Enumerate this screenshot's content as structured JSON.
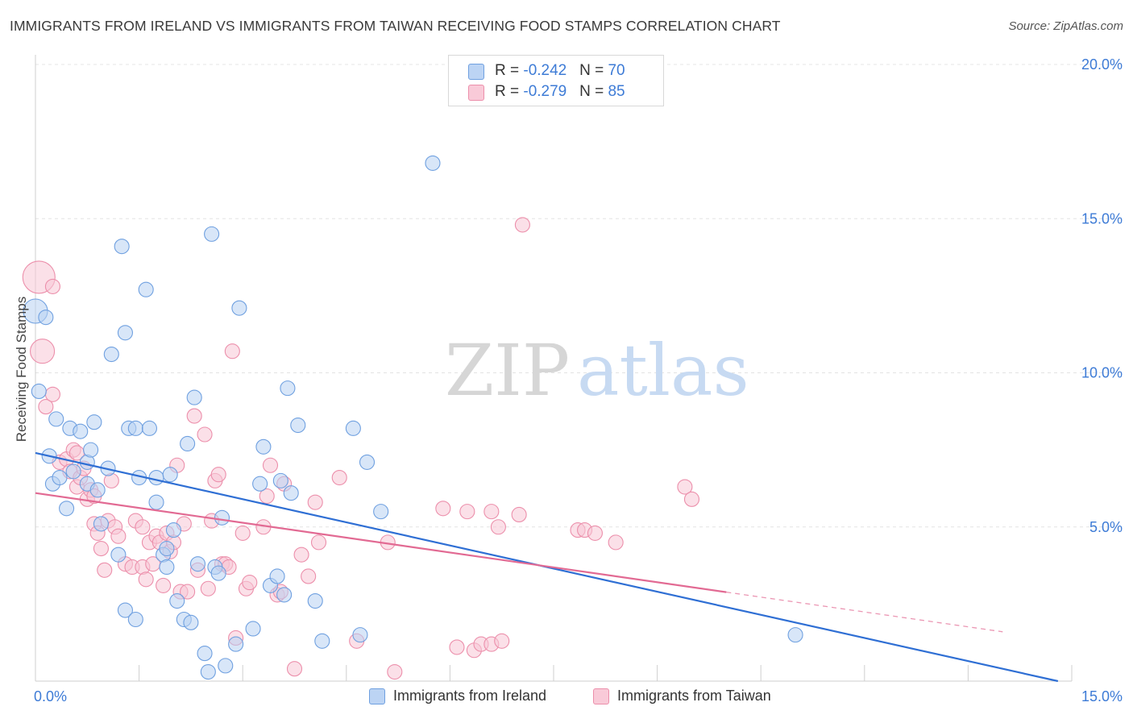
{
  "header": {
    "title": "IMMIGRANTS FROM IRELAND VS IMMIGRANTS FROM TAIWAN RECEIVING FOOD STAMPS CORRELATION CHART",
    "source": "Source: ZipAtlas.com"
  },
  "watermark": {
    "part1": "ZIP",
    "part2": "atlas"
  },
  "legend_top": {
    "rows": [
      {
        "r_label": "R = ",
        "r_value": "-0.242",
        "n_label": "N = ",
        "n_value": "70",
        "color": "#a9c8f0"
      },
      {
        "r_label": "R = ",
        "r_value": "-0.279",
        "n_label": "N = ",
        "n_value": "85",
        "color": "#f6b3c8"
      }
    ]
  },
  "legend_bottom": {
    "items": [
      {
        "label": "Immigrants from Ireland",
        "color": "#a9c8f0"
      },
      {
        "label": "Immigrants from Taiwan",
        "color": "#f6b3c8"
      }
    ]
  },
  "chart_data": {
    "type": "scatter",
    "title": "IMMIGRANTS FROM IRELAND VS IMMIGRANTS FROM TAIWAN RECEIVING FOOD STAMPS CORRELATION CHART",
    "xlabel": "",
    "ylabel": "Receiving Food Stamps",
    "xlim": [
      0,
      15
    ],
    "ylim": [
      0,
      20
    ],
    "x_tick_labels": [
      "0.0%",
      "15.0%"
    ],
    "y_ticks": [
      5,
      10,
      15,
      20
    ],
    "y_tick_labels": [
      "5.0%",
      "10.0%",
      "15.0%",
      "20.0%"
    ],
    "grid": true,
    "legend_position": "top-center",
    "colors": {
      "ireland": "#6fa0e0",
      "ireland_fill": "#b8d1f3",
      "ireland_line": "#2f6fd4",
      "taiwan": "#ec8fab",
      "taiwan_fill": "#f8c6d6",
      "taiwan_line": "#e26a93"
    },
    "series": [
      {
        "name": "Immigrants from Ireland",
        "trend": {
          "x0": 0,
          "y0": 7.4,
          "x1": 14.8,
          "y1": 0,
          "solid_until": 14.8
        },
        "points": [
          [
            0.0,
            12.0,
            2
          ],
          [
            0.15,
            11.8,
            1
          ],
          [
            0.05,
            9.4,
            1
          ],
          [
            0.2,
            7.3,
            1
          ],
          [
            0.25,
            6.4,
            1
          ],
          [
            0.3,
            8.5,
            1
          ],
          [
            0.35,
            6.6,
            1
          ],
          [
            0.45,
            5.6,
            1
          ],
          [
            0.5,
            8.2,
            1
          ],
          [
            0.55,
            6.8,
            1
          ],
          [
            0.65,
            8.1,
            1
          ],
          [
            0.75,
            7.1,
            1
          ],
          [
            0.75,
            6.4,
            1
          ],
          [
            0.8,
            7.5,
            1
          ],
          [
            0.85,
            8.4,
            1
          ],
          [
            0.9,
            6.2,
            1
          ],
          [
            0.95,
            5.1,
            1
          ],
          [
            1.05,
            6.9,
            1
          ],
          [
            1.1,
            10.6,
            1
          ],
          [
            1.2,
            4.1,
            1
          ],
          [
            1.25,
            14.1,
            1
          ],
          [
            1.3,
            11.3,
            1
          ],
          [
            1.3,
            2.3,
            1
          ],
          [
            1.35,
            8.2,
            1
          ],
          [
            1.45,
            8.2,
            1
          ],
          [
            1.45,
            2.0,
            1
          ],
          [
            1.5,
            6.6,
            1
          ],
          [
            1.6,
            12.7,
            1
          ],
          [
            1.65,
            8.2,
            1
          ],
          [
            1.75,
            6.6,
            1
          ],
          [
            1.75,
            5.8,
            1
          ],
          [
            1.85,
            4.1,
            1
          ],
          [
            1.9,
            4.3,
            1
          ],
          [
            1.9,
            3.7,
            1
          ],
          [
            1.95,
            6.7,
            1
          ],
          [
            2.0,
            4.9,
            1
          ],
          [
            2.05,
            2.6,
            1
          ],
          [
            2.15,
            2.0,
            1
          ],
          [
            2.2,
            7.7,
            1
          ],
          [
            2.25,
            1.9,
            1
          ],
          [
            2.3,
            9.2,
            1
          ],
          [
            2.35,
            3.8,
            1
          ],
          [
            2.45,
            0.9,
            1
          ],
          [
            2.5,
            0.3,
            1
          ],
          [
            2.55,
            14.5,
            1
          ],
          [
            2.6,
            3.7,
            1
          ],
          [
            2.65,
            3.5,
            1
          ],
          [
            2.7,
            5.3,
            1
          ],
          [
            2.75,
            0.5,
            1
          ],
          [
            2.9,
            1.2,
            1
          ],
          [
            2.95,
            12.1,
            1
          ],
          [
            3.15,
            1.7,
            1
          ],
          [
            3.25,
            6.4,
            1
          ],
          [
            3.3,
            7.6,
            1
          ],
          [
            3.4,
            3.1,
            1
          ],
          [
            3.5,
            3.4,
            1
          ],
          [
            3.55,
            6.5,
            1
          ],
          [
            3.6,
            2.8,
            1
          ],
          [
            3.65,
            9.5,
            1
          ],
          [
            3.7,
            6.1,
            1
          ],
          [
            3.8,
            8.3,
            1
          ],
          [
            4.05,
            2.6,
            1
          ],
          [
            4.15,
            1.3,
            1
          ],
          [
            4.6,
            8.2,
            1
          ],
          [
            4.7,
            1.5,
            1
          ],
          [
            4.8,
            7.1,
            1
          ],
          [
            5.0,
            5.5,
            1
          ],
          [
            5.75,
            16.8,
            1
          ],
          [
            11.0,
            1.5,
            1
          ]
        ]
      },
      {
        "name": "Immigrants from Taiwan",
        "trend": {
          "x0": 0,
          "y0": 6.1,
          "x1": 14.0,
          "y1": 1.6,
          "solid_until": 10.0
        },
        "points": [
          [
            0.05,
            13.1,
            3
          ],
          [
            0.1,
            10.7,
            2
          ],
          [
            0.15,
            8.9,
            1
          ],
          [
            0.25,
            12.8,
            1
          ],
          [
            0.25,
            9.3,
            1
          ],
          [
            0.35,
            7.1,
            1
          ],
          [
            0.45,
            7.2,
            1
          ],
          [
            0.5,
            6.8,
            1
          ],
          [
            0.55,
            7.5,
            1
          ],
          [
            0.6,
            7.4,
            1
          ],
          [
            0.6,
            6.3,
            1
          ],
          [
            0.65,
            6.6,
            1
          ],
          [
            0.7,
            6.9,
            1
          ],
          [
            0.75,
            5.9,
            1
          ],
          [
            0.8,
            6.2,
            1
          ],
          [
            0.85,
            6.0,
            1
          ],
          [
            0.85,
            5.1,
            1
          ],
          [
            0.9,
            4.8,
            1
          ],
          [
            0.95,
            4.3,
            1
          ],
          [
            1.0,
            3.6,
            1
          ],
          [
            1.05,
            5.2,
            1
          ],
          [
            1.1,
            6.5,
            1
          ],
          [
            1.15,
            5.0,
            1
          ],
          [
            1.2,
            4.7,
            1
          ],
          [
            1.3,
            3.8,
            1
          ],
          [
            1.4,
            3.7,
            1
          ],
          [
            1.45,
            5.2,
            1
          ],
          [
            1.55,
            5.0,
            1
          ],
          [
            1.55,
            3.7,
            1
          ],
          [
            1.6,
            3.3,
            1
          ],
          [
            1.65,
            4.5,
            1
          ],
          [
            1.7,
            3.8,
            1
          ],
          [
            1.75,
            4.7,
            1
          ],
          [
            1.8,
            4.5,
            1
          ],
          [
            1.85,
            3.1,
            1
          ],
          [
            1.9,
            4.8,
            1
          ],
          [
            1.95,
            4.2,
            1
          ],
          [
            2.0,
            4.5,
            1
          ],
          [
            2.05,
            7.0,
            1
          ],
          [
            2.1,
            2.9,
            1
          ],
          [
            2.15,
            5.1,
            1
          ],
          [
            2.2,
            2.9,
            1
          ],
          [
            2.3,
            8.6,
            1
          ],
          [
            2.35,
            3.6,
            1
          ],
          [
            2.45,
            8.0,
            1
          ],
          [
            2.5,
            3.0,
            1
          ],
          [
            2.55,
            5.2,
            1
          ],
          [
            2.6,
            6.5,
            1
          ],
          [
            2.65,
            6.7,
            1
          ],
          [
            2.7,
            3.8,
            1
          ],
          [
            2.75,
            3.8,
            1
          ],
          [
            2.8,
            3.7,
            1
          ],
          [
            2.85,
            10.7,
            1
          ],
          [
            2.9,
            1.4,
            1
          ],
          [
            3.0,
            4.8,
            1
          ],
          [
            3.05,
            3.0,
            1
          ],
          [
            3.1,
            3.2,
            1
          ],
          [
            3.3,
            5.0,
            1
          ],
          [
            3.35,
            6.0,
            1
          ],
          [
            3.4,
            7.0,
            1
          ],
          [
            3.5,
            2.8,
            1
          ],
          [
            3.55,
            2.9,
            1
          ],
          [
            3.6,
            6.4,
            1
          ],
          [
            3.75,
            0.4,
            1
          ],
          [
            3.85,
            4.1,
            1
          ],
          [
            3.95,
            3.4,
            1
          ],
          [
            4.05,
            5.8,
            1
          ],
          [
            4.1,
            4.5,
            1
          ],
          [
            4.4,
            6.6,
            1
          ],
          [
            4.65,
            1.3,
            1
          ],
          [
            5.1,
            4.5,
            1
          ],
          [
            5.2,
            0.3,
            1
          ],
          [
            5.9,
            5.6,
            1
          ],
          [
            6.1,
            1.1,
            1
          ],
          [
            6.25,
            5.5,
            1
          ],
          [
            6.35,
            1.0,
            1
          ],
          [
            6.45,
            1.2,
            1
          ],
          [
            6.6,
            1.2,
            1
          ],
          [
            6.6,
            5.5,
            1
          ],
          [
            6.7,
            5.0,
            1
          ],
          [
            6.75,
            1.3,
            1
          ],
          [
            7.0,
            5.4,
            1
          ],
          [
            7.05,
            14.8,
            1
          ],
          [
            7.85,
            4.9,
            1
          ],
          [
            7.95,
            4.9,
            1
          ],
          [
            8.1,
            4.8,
            1
          ],
          [
            8.4,
            4.5,
            1
          ],
          [
            9.4,
            6.3,
            1
          ],
          [
            9.5,
            5.9,
            1
          ]
        ]
      }
    ]
  }
}
